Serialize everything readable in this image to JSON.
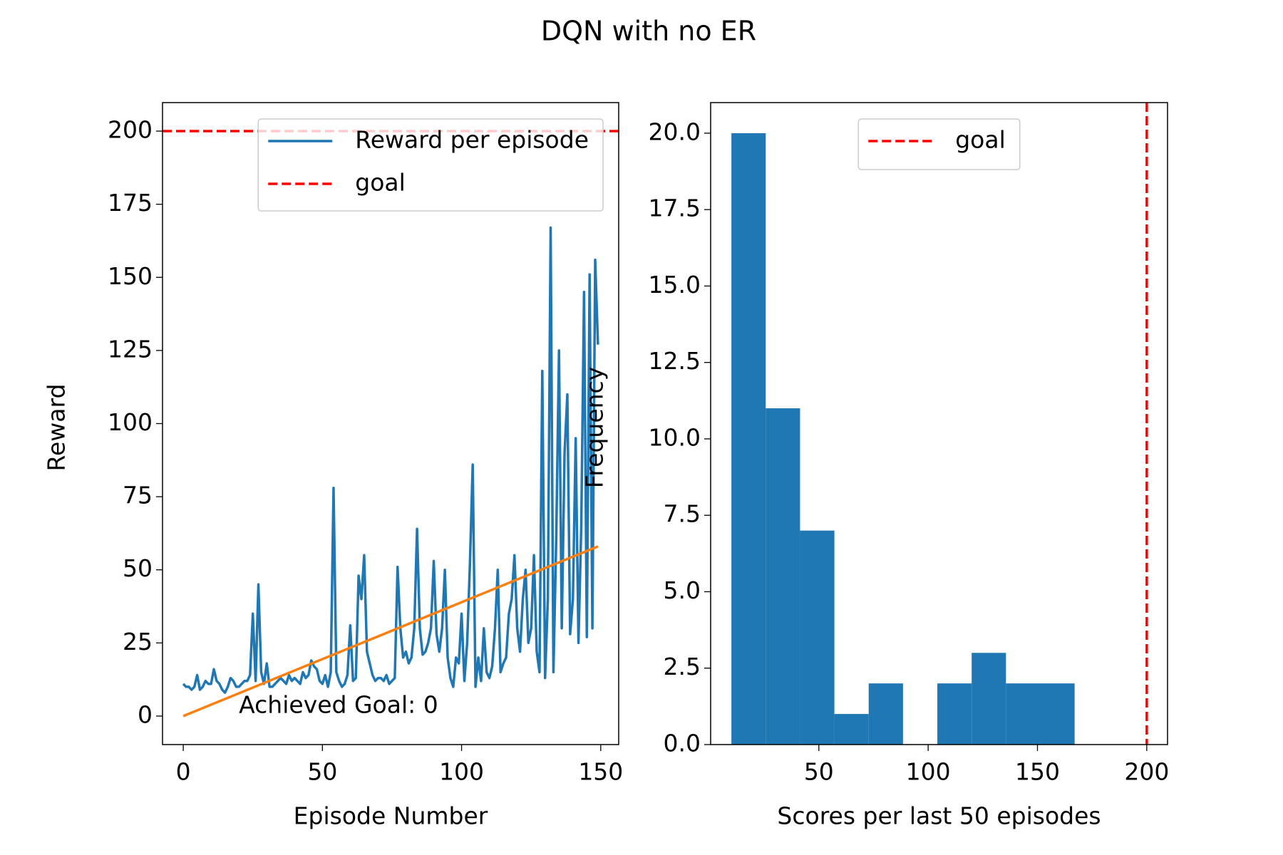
{
  "title": "DQN with no ER",
  "chart_data": [
    {
      "type": "line",
      "xlabel": "Episode Number",
      "ylabel": "Reward",
      "x": [
        0,
        1,
        2,
        3,
        4,
        5,
        6,
        7,
        8,
        9,
        10,
        11,
        12,
        13,
        14,
        15,
        16,
        17,
        18,
        19,
        20,
        21,
        22,
        23,
        24,
        25,
        26,
        27,
        28,
        29,
        30,
        31,
        32,
        33,
        34,
        35,
        36,
        37,
        38,
        39,
        40,
        41,
        42,
        43,
        44,
        45,
        46,
        47,
        48,
        49,
        50,
        51,
        52,
        53,
        54,
        55,
        56,
        57,
        58,
        59,
        60,
        61,
        62,
        63,
        64,
        65,
        66,
        67,
        68,
        69,
        70,
        71,
        72,
        73,
        74,
        75,
        76,
        77,
        78,
        79,
        80,
        81,
        82,
        83,
        84,
        85,
        86,
        87,
        88,
        89,
        90,
        91,
        92,
        93,
        94,
        95,
        96,
        97,
        98,
        99,
        100,
        101,
        102,
        103,
        104,
        105,
        106,
        107,
        108,
        109,
        110,
        111,
        112,
        113,
        114,
        115,
        116,
        117,
        118,
        119,
        120,
        121,
        122,
        123,
        124,
        125,
        126,
        127,
        128,
        129,
        130,
        131,
        132,
        133,
        134,
        135,
        136,
        137,
        138,
        139,
        140,
        141,
        142,
        143,
        144,
        145,
        146,
        147,
        148,
        149
      ],
      "series": [
        {
          "name": "Reward per episode",
          "color": "#1f77b4",
          "values": [
            11,
            10,
            10,
            9,
            10,
            14,
            9,
            10,
            12,
            11,
            11,
            16,
            12,
            11,
            9,
            8,
            10,
            13,
            12,
            10,
            10,
            11,
            12,
            12,
            14,
            35,
            12,
            45,
            15,
            11,
            18,
            10,
            10,
            11,
            12,
            13,
            12,
            11,
            14,
            12,
            13,
            12,
            11,
            15,
            13,
            14,
            19,
            17,
            16,
            12,
            11,
            14,
            10,
            15,
            78,
            15,
            12,
            10,
            11,
            14,
            31,
            12,
            13,
            48,
            40,
            55,
            22,
            18,
            14,
            12,
            13,
            13,
            12,
            14,
            11,
            12,
            13,
            51,
            30,
            20,
            22,
            18,
            20,
            30,
            64,
            30,
            21,
            22,
            25,
            30,
            53,
            28,
            22,
            30,
            50,
            20,
            13,
            10,
            20,
            18,
            35,
            12,
            25,
            52,
            86,
            10,
            20,
            12,
            30,
            15,
            13,
            17,
            30,
            50,
            15,
            18,
            20,
            35,
            40,
            55,
            30,
            22,
            40,
            50,
            25,
            30,
            55,
            22,
            15,
            118,
            13,
            40,
            167,
            15,
            60,
            125,
            30,
            90,
            110,
            28,
            40,
            95,
            25,
            65,
            145,
            27,
            151,
            30,
            156,
            127
          ]
        }
      ],
      "trend": {
        "color": "#ff7f0e",
        "x": [
          0,
          149
        ],
        "values": [
          0,
          58
        ]
      },
      "reference_lines": [
        {
          "name": "goal",
          "color": "#ff0000",
          "y": 200
        }
      ],
      "annotation": {
        "text": "Achieved Goal: 0",
        "x": 20,
        "y": 0
      },
      "xlim": [
        -7.45,
        156.45
      ],
      "xticks": [
        0,
        50,
        100,
        150
      ],
      "ylim": [
        -9.75,
        209.75
      ],
      "yticks": [
        0,
        25,
        50,
        75,
        100,
        125,
        150,
        175,
        200
      ],
      "legend": "upper right"
    },
    {
      "type": "histogram",
      "xlabel": "Scores per last 50 episodes",
      "ylabel": "Frequency",
      "bins": [
        10,
        25.7,
        41.4,
        57.1,
        72.8,
        88.5,
        104.2,
        119.9,
        135.6,
        151.3,
        167
      ],
      "counts": [
        20,
        11,
        7,
        1,
        2,
        0,
        2,
        3,
        2,
        2
      ],
      "color": "#1f77b4",
      "reference_lines": [
        {
          "name": "goal",
          "color": "#ff0000",
          "x": 200
        }
      ],
      "xlim": [
        0.5,
        209.5
      ],
      "xticks": [
        50,
        100,
        150,
        200
      ],
      "ylim": [
        0,
        21
      ],
      "yticks": [
        {
          "value": 0,
          "label": "0.0"
        },
        {
          "value": 2.5,
          "label": "2.5"
        },
        {
          "value": 5,
          "label": "5.0"
        },
        {
          "value": 7.5,
          "label": "7.5"
        },
        {
          "value": 10,
          "label": "10.0"
        },
        {
          "value": 12.5,
          "label": "12.5"
        },
        {
          "value": 15,
          "label": "15.0"
        },
        {
          "value": 17.5,
          "label": "17.5"
        },
        {
          "value": 20,
          "label": "20.0"
        }
      ],
      "legend": "upper center"
    }
  ]
}
